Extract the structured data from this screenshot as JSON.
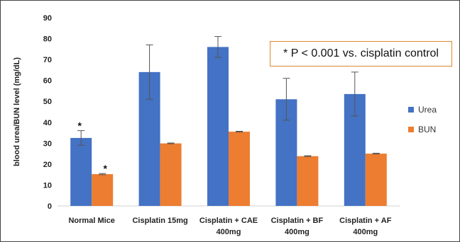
{
  "chart_data": {
    "type": "bar",
    "title": "",
    "ylabel": "blood urea/BUN level (mg/dL)",
    "xlabel": "",
    "ylim": [
      0,
      90
    ],
    "yticks": [
      0,
      10,
      20,
      30,
      40,
      50,
      60,
      70,
      80,
      90
    ],
    "grid": false,
    "legend_position": "right",
    "categories": [
      [
        "Normal Mice"
      ],
      [
        "Cisplatin 15mg"
      ],
      [
        "Cisplatin + CAE",
        "400mg"
      ],
      [
        "Cisplatin +  BF",
        "400mg"
      ],
      [
        "Cisplatin +  AF",
        "400mg"
      ]
    ],
    "series": [
      {
        "name": "Urea",
        "color": "#4472c4",
        "values": [
          32.5,
          64,
          76,
          51,
          53.5
        ],
        "errors": [
          3.5,
          13,
          5,
          10,
          10.5
        ],
        "significance": [
          "*",
          "",
          "",
          "",
          ""
        ]
      },
      {
        "name": "BUN",
        "color": "#ed7d31",
        "values": [
          15.2,
          29.9,
          35.5,
          23.8,
          25
        ],
        "errors": [
          0.3,
          0.2,
          0.2,
          0.2,
          0.2
        ],
        "significance": [
          "*",
          "",
          "",
          "",
          ""
        ]
      }
    ],
    "annotation": "* P < 0.001 vs. cisplatin control"
  }
}
